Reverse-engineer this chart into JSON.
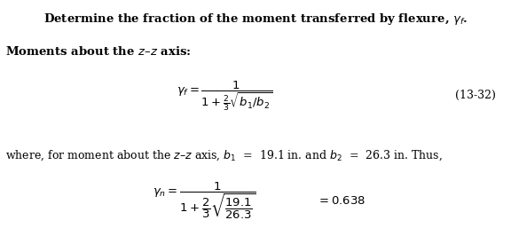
{
  "bg_color": "#ffffff",
  "title_line": "Determine the fraction of the moment transferred by flexure, $\\gamma_f$.",
  "line2": "Moments about the $z$–$z$ axis:",
  "eq1": "$\\gamma_f = \\dfrac{1}{1 + \\frac{2}{3}\\sqrt{b_1/b_2}}$",
  "eq_label": "(13-32)",
  "where_line": "where, for moment about the $z$–$z$ axis, $b_1$  =  19.1 in. and $b_2$  =  26.3 in. Thus,",
  "eq2": "$\\gamma_n = \\dfrac{1}{1 + \\dfrac{2}{3}\\sqrt{\\dfrac{19.1}{26.3}}}$",
  "result": "$= 0.638$",
  "fs_title": 9.5,
  "fs_body": 9.0,
  "fs_eq": 9.5
}
